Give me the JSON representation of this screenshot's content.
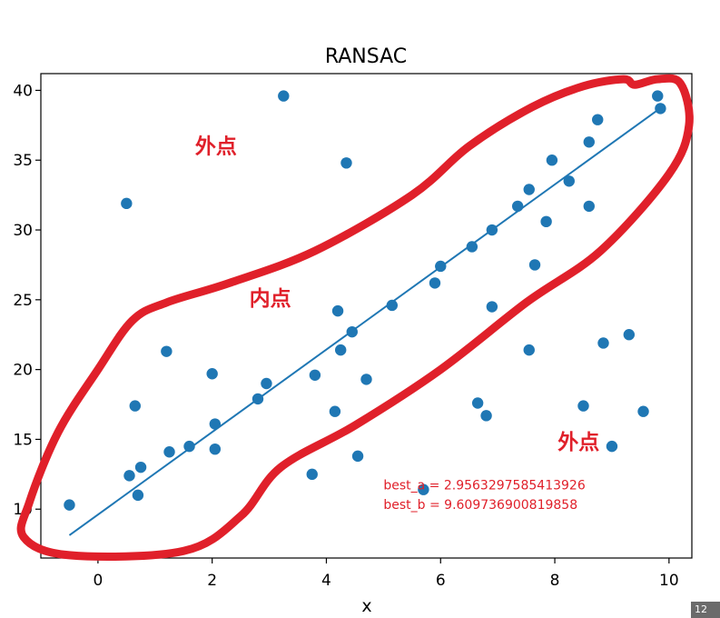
{
  "chart_data": {
    "type": "scatter",
    "title": "RANSAC",
    "xlabel": "x",
    "ylabel": "",
    "xlim": [
      -1.0,
      10.4
    ],
    "ylim": [
      6.5,
      41.2
    ],
    "x_ticks": [
      0,
      2,
      4,
      6,
      8,
      10
    ],
    "y_ticks": [
      10,
      15,
      20,
      25,
      30,
      35,
      40
    ],
    "grid": false,
    "colors": {
      "points": "#1f77b4",
      "fit_line": "#1f77b4",
      "annotation": "#e0202a"
    },
    "points": [
      {
        "x": -0.5,
        "y": 10.3
      },
      {
        "x": 0.55,
        "y": 12.4
      },
      {
        "x": 0.65,
        "y": 17.4
      },
      {
        "x": 0.7,
        "y": 11.0
      },
      {
        "x": 0.75,
        "y": 13.0
      },
      {
        "x": 0.5,
        "y": 31.9
      },
      {
        "x": 1.2,
        "y": 21.3
      },
      {
        "x": 1.25,
        "y": 14.1
      },
      {
        "x": 1.6,
        "y": 14.5
      },
      {
        "x": 2.0,
        "y": 19.7
      },
      {
        "x": 2.05,
        "y": 16.1
      },
      {
        "x": 2.05,
        "y": 14.3
      },
      {
        "x": 2.8,
        "y": 17.9
      },
      {
        "x": 2.95,
        "y": 19.0
      },
      {
        "x": 3.25,
        "y": 39.6
      },
      {
        "x": 3.75,
        "y": 12.5
      },
      {
        "x": 3.8,
        "y": 19.6
      },
      {
        "x": 4.15,
        "y": 17.0
      },
      {
        "x": 4.2,
        "y": 24.2
      },
      {
        "x": 4.25,
        "y": 21.4
      },
      {
        "x": 4.35,
        "y": 34.8
      },
      {
        "x": 4.45,
        "y": 22.7
      },
      {
        "x": 4.55,
        "y": 13.8
      },
      {
        "x": 4.7,
        "y": 19.3
      },
      {
        "x": 5.15,
        "y": 24.6
      },
      {
        "x": 5.7,
        "y": 11.4
      },
      {
        "x": 5.9,
        "y": 26.2
      },
      {
        "x": 6.0,
        "y": 27.4
      },
      {
        "x": 6.55,
        "y": 28.8
      },
      {
        "x": 6.65,
        "y": 17.6
      },
      {
        "x": 6.8,
        "y": 16.7
      },
      {
        "x": 6.9,
        "y": 30.0
      },
      {
        "x": 6.9,
        "y": 24.5
      },
      {
        "x": 7.35,
        "y": 31.7
      },
      {
        "x": 7.55,
        "y": 32.9
      },
      {
        "x": 7.55,
        "y": 21.4
      },
      {
        "x": 7.65,
        "y": 27.5
      },
      {
        "x": 7.85,
        "y": 30.6
      },
      {
        "x": 7.95,
        "y": 35.0
      },
      {
        "x": 8.25,
        "y": 33.5
      },
      {
        "x": 8.5,
        "y": 17.4
      },
      {
        "x": 8.6,
        "y": 36.3
      },
      {
        "x": 8.6,
        "y": 31.7
      },
      {
        "x": 8.75,
        "y": 37.9
      },
      {
        "x": 8.85,
        "y": 21.9
      },
      {
        "x": 9.0,
        "y": 14.5
      },
      {
        "x": 9.3,
        "y": 22.5
      },
      {
        "x": 9.55,
        "y": 17.0
      },
      {
        "x": 9.8,
        "y": 39.6
      },
      {
        "x": 9.85,
        "y": 38.7
      }
    ],
    "fit_line": {
      "x": [
        -0.5,
        9.85
      ],
      "slope": 2.9563297585413926,
      "intercept": 9.609736900819858
    },
    "annotations": [
      {
        "text": "外点",
        "x": 1.7,
        "y": 35.5
      },
      {
        "text": "内点",
        "x": 2.65,
        "y": 24.6
      },
      {
        "text": "外点",
        "x": 8.05,
        "y": 14.3
      },
      {
        "text": "best_a = 2.9563297585413926",
        "x": 5.0,
        "y": 11.4
      },
      {
        "text": "best_b = 9.609736900819858",
        "x": 5.0,
        "y": 10.0
      }
    ],
    "inlier_region": [
      [
        -0.5,
        6.7
      ],
      [
        1.5,
        7.0
      ],
      [
        2.5,
        9.5
      ],
      [
        3.2,
        13.0
      ],
      [
        4.5,
        16.0
      ],
      [
        6.0,
        20.0
      ],
      [
        7.5,
        24.8
      ],
      [
        8.8,
        28.5
      ],
      [
        10.0,
        34.0
      ],
      [
        10.35,
        37.5
      ],
      [
        10.2,
        40.5
      ],
      [
        9.8,
        40.8
      ],
      [
        9.4,
        40.4
      ],
      [
        9.2,
        40.8
      ],
      [
        8.5,
        40.3
      ],
      [
        7.6,
        38.8
      ],
      [
        6.5,
        36.0
      ],
      [
        5.5,
        32.5
      ],
      [
        3.8,
        28.5
      ],
      [
        2.3,
        26.2
      ],
      [
        1.2,
        24.8
      ],
      [
        0.6,
        23.5
      ],
      [
        0.0,
        20.0
      ],
      [
        -0.7,
        15.5
      ],
      [
        -1.2,
        10.5
      ],
      [
        -1.3,
        8.0
      ]
    ]
  },
  "page_badge": "12"
}
